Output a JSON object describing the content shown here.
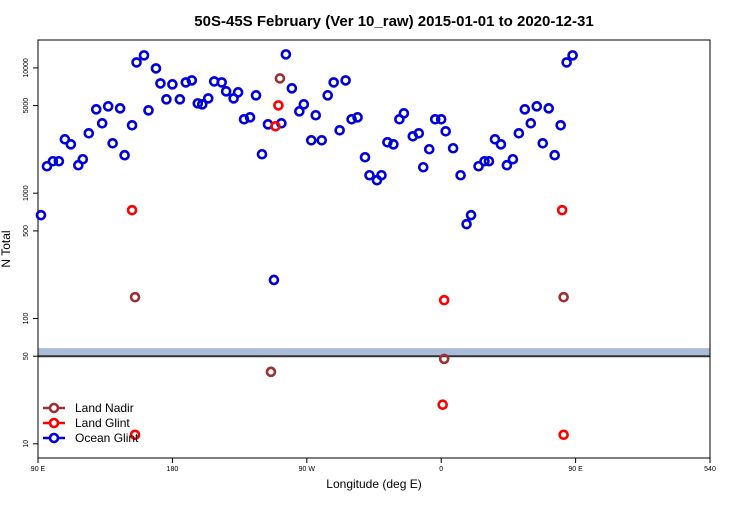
{
  "chart_data": {
    "type": "scatter",
    "title": "50S-45S February (Ver 10_raw)   2015-01-01 to 2020-12-31",
    "xlabel": "Longitude (deg E)",
    "ylabel": "N Total",
    "xlim": [
      90,
      540
    ],
    "xticks": [
      {
        "value": 90,
        "label": "90 E"
      },
      180,
      {
        "value": 270,
        "label": "90 W"
      },
      {
        "value": 360,
        "label": "0"
      },
      {
        "value": 450,
        "label": "90 E"
      },
      540
    ],
    "ylim": [
      7.7,
      16700
    ],
    "yscale": "log",
    "yticks": [
      10,
      50,
      100,
      500,
      1000,
      5000,
      10000
    ],
    "band": {
      "ylim": [
        50,
        58
      ],
      "color": "#a9bcd9"
    },
    "reference_line": {
      "value": 50,
      "color": "#333333"
    },
    "legend": "lower left",
    "series": [
      {
        "name": "Land Nadir",
        "color": "#993333",
        "x": [
          155,
          252,
          246,
          362,
          442
        ],
        "values": [
          148,
          8240,
          37.5,
          47.6,
          148
        ]
      },
      {
        "name": "Land Glint",
        "color": "#ff0000",
        "x": [
          153,
          155,
          251,
          249,
          362,
          361,
          441,
          442
        ],
        "values": [
          732,
          11.8,
          5020,
          3420,
          140,
          20.5,
          732,
          11.8
        ]
      },
      {
        "name": "Ocean Glint",
        "color": "#0000dd",
        "x": [
          92,
          96,
          100,
          104,
          108,
          112,
          117,
          120,
          124,
          129,
          133,
          137,
          140,
          145,
          148,
          153,
          156,
          161,
          164,
          169,
          172,
          176,
          180,
          185,
          189,
          193,
          197,
          200,
          204,
          208,
          213,
          216,
          221,
          224,
          228,
          232,
          236,
          240,
          244,
          248,
          253,
          256,
          260,
          265,
          268,
          273,
          276,
          280,
          284,
          288,
          292,
          296,
          300,
          304,
          309,
          312,
          317,
          320,
          324,
          328,
          332,
          335,
          341,
          345,
          348,
          352,
          356,
          360,
          363,
          368,
          373,
          377,
          380,
          385,
          389,
          392,
          396,
          400,
          404,
          408,
          412,
          416,
          420,
          424,
          428,
          432,
          436,
          440,
          444,
          448
        ],
        "values": [
          668,
          1641,
          1799,
          1799,
          2692,
          2455,
          1672,
          1866,
          3006,
          4670,
          3612,
          4935,
          2502,
          4755,
          2009,
          3483,
          11060,
          12590,
          4585,
          9910,
          7520,
          5610,
          7390,
          5610,
          7660,
          7950,
          5210,
          5120,
          5710,
          7800,
          7660,
          6500,
          5710,
          6380,
          3890,
          4030,
          6040,
          2046,
          3546,
          203,
          3612,
          12820,
          6870,
          4500,
          5120,
          2644,
          4190,
          2644,
          6040,
          7660,
          3178,
          7950,
          3890,
          4030,
          1936,
          1391,
          1270,
          1391,
          2548,
          2455,
          3890,
          4340,
          2846,
          3006,
          1611,
          2243,
          3890,
          3890,
          3120,
          2284,
          1391,
          566,
          668,
          1641,
          1799,
          1799,
          2692,
          2455,
          1672,
          1866,
          3006,
          4670,
          3612,
          4935,
          2502,
          4755,
          2009,
          3483,
          11060,
          12590
        ]
      }
    ]
  }
}
